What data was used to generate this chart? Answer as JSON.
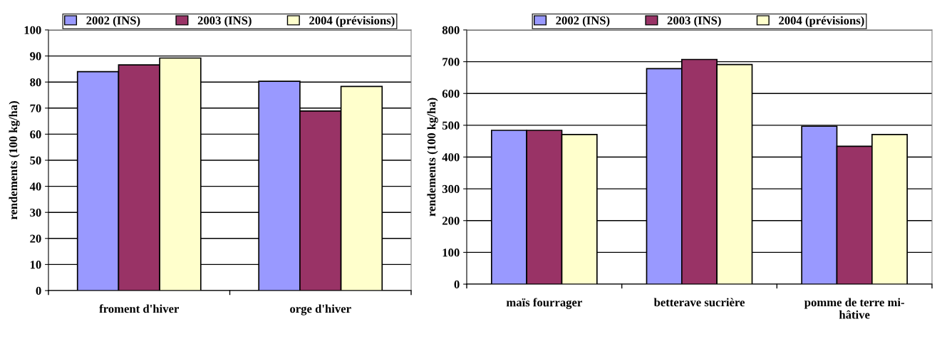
{
  "chart_data": [
    {
      "type": "bar",
      "ylabel": "rendements (100 kg/ha)",
      "categories": [
        "froment d'hiver",
        "orge d'hiver"
      ],
      "series": [
        {
          "name": "2002 (INS)",
          "color": "#9999ff",
          "values": [
            84.0,
            80.3
          ]
        },
        {
          "name": "2003 (INS)",
          "color": "#993366",
          "values": [
            86.6,
            68.9
          ]
        },
        {
          "name": "2004 (prévisions)",
          "color": "#ffffcc",
          "values": [
            89.2,
            78.3
          ]
        }
      ],
      "ylim": [
        0,
        100
      ],
      "yticks": [
        0,
        10,
        20,
        30,
        40,
        50,
        60,
        70,
        80,
        90,
        100
      ],
      "grid": "y",
      "legend": "top"
    },
    {
      "type": "bar",
      "ylabel": "rendements (100 kg/ha)",
      "categories": [
        "maïs fourrager",
        "betterave sucrière",
        "pomme de terre mi-\nhâtive"
      ],
      "series": [
        {
          "name": "2002 (INS)",
          "color": "#9999ff",
          "values": [
            484,
            678,
            497
          ]
        },
        {
          "name": "2003 (INS)",
          "color": "#993366",
          "values": [
            484,
            707,
            434
          ]
        },
        {
          "name": "2004 (prévisions)",
          "color": "#ffffcc",
          "values": [
            471,
            691,
            471
          ]
        }
      ],
      "ylim": [
        0,
        800
      ],
      "yticks": [
        0,
        100,
        200,
        300,
        400,
        500,
        600,
        700,
        800
      ],
      "grid": "y",
      "legend": "top"
    }
  ]
}
